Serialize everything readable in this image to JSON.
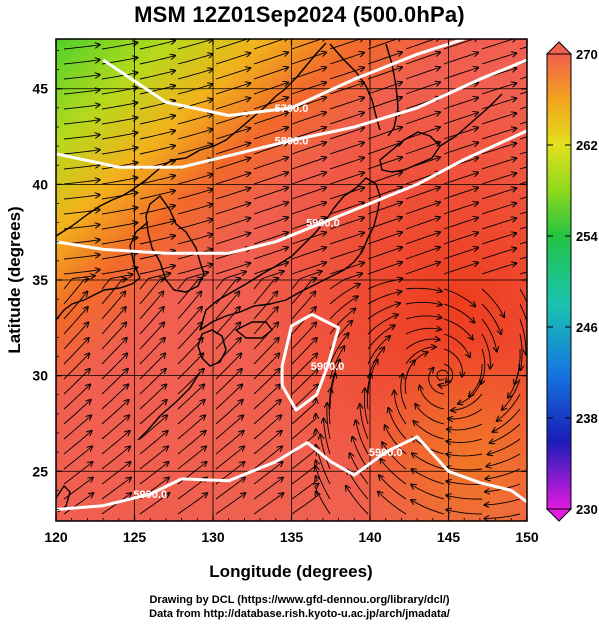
{
  "title": "MSM 12Z01Sep2024 (500.0hPa)",
  "credits": {
    "line1": "Drawing by DCL (https://www.gfd-dennou.org/library/dcl/)",
    "line2": "Data from http://database.rish.kyoto-u.ac.jp/arch/jmadata/"
  },
  "chart_data": {
    "type": "heatmap",
    "xlabel": "Longitude (degrees)",
    "ylabel": "Latitude  (degrees)",
    "xlim": [
      120,
      150
    ],
    "ylim": [
      22.4,
      47.6
    ],
    "x_ticks": [
      "120",
      "125",
      "130",
      "135",
      "140",
      "145",
      "150"
    ],
    "y_ticks": [
      "25",
      "30",
      "35",
      "40",
      "45"
    ],
    "x_tick_values": [
      120,
      125,
      130,
      135,
      140,
      145,
      150
    ],
    "y_tick_values": [
      25,
      30,
      35,
      40,
      45
    ],
    "grid": true,
    "colorbar": {
      "min": 230,
      "max": 270,
      "labels": [
        "270",
        "262",
        "254",
        "246",
        "238",
        "230"
      ],
      "label_values": [
        270,
        262,
        254,
        246,
        238,
        230
      ]
    },
    "contours": [
      {
        "label": "5700.0",
        "points": [
          [
            123,
            46.5
          ],
          [
            127,
            44.3
          ],
          [
            131,
            43.6
          ],
          [
            135,
            44.0
          ],
          [
            139,
            45.5
          ],
          [
            143,
            46.8
          ],
          [
            146,
            47.6
          ]
        ]
      },
      {
        "label": "5800.0",
        "points": [
          [
            120,
            41.6
          ],
          [
            124,
            40.9
          ],
          [
            128,
            40.9
          ],
          [
            131,
            41.5
          ],
          [
            135,
            42.3
          ],
          [
            139,
            43.0
          ],
          [
            143,
            44.0
          ],
          [
            147,
            45.5
          ],
          [
            150,
            46.5
          ]
        ]
      },
      {
        "label": "5900.0",
        "points": [
          [
            120,
            37.0
          ],
          [
            123,
            36.6
          ],
          [
            127,
            36.4
          ],
          [
            131,
            36.4
          ],
          [
            134,
            37.0
          ],
          [
            137,
            38.0
          ],
          [
            140,
            39.0
          ],
          [
            143,
            40.0
          ],
          [
            146,
            41.3
          ],
          [
            150,
            42.8
          ]
        ]
      },
      {
        "label": "5900.0",
        "points": [
          [
            134.4,
            30.5
          ],
          [
            135.0,
            32.6
          ],
          [
            136.3,
            33.2
          ],
          [
            138.0,
            32.5
          ],
          [
            137.3,
            30.5
          ],
          [
            136.6,
            29.0
          ],
          [
            135.3,
            28.2
          ],
          [
            134.4,
            29.5
          ],
          [
            134.4,
            30.5
          ]
        ]
      },
      {
        "label": "5900.0",
        "points": [
          [
            128,
            24.6
          ],
          [
            131,
            24.5
          ],
          [
            134,
            25.5
          ],
          [
            136,
            26.5
          ],
          [
            137.5,
            25.5
          ],
          [
            139,
            24.8
          ],
          [
            141,
            26.0
          ],
          [
            143,
            26.8
          ],
          [
            145,
            25.0
          ],
          [
            147,
            24.4
          ],
          [
            149,
            24.0
          ],
          [
            150,
            23.4
          ]
        ]
      },
      {
        "label": "5900.0",
        "points": [
          [
            120,
            23.0
          ],
          [
            123,
            23.2
          ],
          [
            126,
            23.8
          ],
          [
            128,
            24.6
          ]
        ]
      }
    ]
  }
}
